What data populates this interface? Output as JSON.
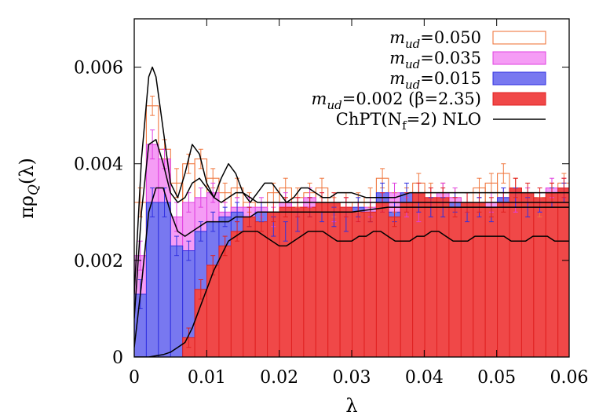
{
  "chart_data": {
    "type": "bar",
    "xlabel": "λ",
    "ylabel": "πρQ(λ)",
    "xlim": [
      0,
      0.06
    ],
    "ylim": [
      0,
      0.007
    ],
    "x_ticks": [
      "0",
      "0.01",
      "0.02",
      "0.03",
      "0.04",
      "0.05",
      "0.06"
    ],
    "x_tick_values": [
      0,
      0.01,
      0.02,
      0.03,
      0.04,
      0.05,
      0.06
    ],
    "y_ticks": [
      "0",
      "0.002",
      "0.004",
      "0.006"
    ],
    "y_tick_values": [
      0,
      0.002,
      0.004,
      0.006
    ],
    "legend_position": "top-right",
    "grid": false,
    "colors": {
      "m050": "#f07840",
      "m035_fill": "#f59cf5",
      "m035_stroke": "#e040e0",
      "m015_fill": "#7878f0",
      "m015_stroke": "#3030e0",
      "m002_fill": "#f04848",
      "m002_stroke": "#e02020",
      "chpt": "#000000"
    },
    "legend": [
      {
        "key": "m050",
        "prefix": "m",
        "sub": "ud",
        "suffix": "=0.050"
      },
      {
        "key": "m035",
        "prefix": "m",
        "sub": "ud",
        "suffix": "=0.035"
      },
      {
        "key": "m015",
        "prefix": "m",
        "sub": "ud",
        "suffix": "=0.015"
      },
      {
        "key": "m002",
        "prefix": "m",
        "sub": "ud",
        "suffix": "=0.002 (β=2.35)"
      },
      {
        "key": "chpt",
        "prefix": "ChPT(N",
        "sub": "f",
        "suffix": "=2) NLO"
      }
    ],
    "series": [
      {
        "name": "m_ud=0.050",
        "key": "m050",
        "bin_width": 0.00167,
        "values": [
          0.0032,
          0.0052,
          0.0043,
          0.0036,
          0.004,
          0.0041,
          0.0037,
          0.0034,
          0.0035,
          0.0032,
          0.003,
          0.0034,
          0.0035,
          0.0033,
          0.0034,
          0.0035,
          0.0031,
          0.0032,
          0.0032,
          0.0033,
          0.0037,
          0.0032,
          0.0033,
          0.0036,
          0.0034,
          0.0034,
          0.0033,
          0.0032,
          0.0035,
          0.0036,
          0.0038,
          0.0035,
          0.0033,
          0.0031,
          0.0034,
          0.0036
        ],
        "errors": [
          0.0003,
          0.0002,
          0.0002,
          0.0003,
          0.0002,
          0.0002,
          0.0002,
          0.0002,
          0.0002,
          0.0002,
          0.0002,
          0.0002,
          0.0002,
          0.0002,
          0.0002,
          0.0002,
          0.0002,
          0.0002,
          0.0002,
          0.0002,
          0.0002,
          0.0002,
          0.0002,
          0.0002,
          0.0002,
          0.0002,
          0.0002,
          0.0002,
          0.0002,
          0.0002,
          0.0002,
          0.0002,
          0.0002,
          0.0002,
          0.0002,
          0.0002
        ]
      },
      {
        "name": "m_ud=0.035",
        "key": "m035",
        "bin_width": 0.00167,
        "values": [
          0.0021,
          0.0044,
          0.0041,
          0.0029,
          0.0032,
          0.0033,
          0.0034,
          0.003,
          0.0031,
          0.0031,
          0.0031,
          0.0029,
          0.0032,
          0.0031,
          0.0033,
          0.0032,
          0.003,
          0.0031,
          0.003,
          0.0031,
          0.0032,
          0.0034,
          0.0031,
          0.003,
          0.0033,
          0.0034,
          0.0033,
          0.0032,
          0.0031,
          0.0032,
          0.0033,
          0.0032,
          0.0033,
          0.0032,
          0.0035,
          0.0035
        ],
        "errors": [
          0.0003,
          0.0003,
          0.0002,
          0.0003,
          0.0002,
          0.0002,
          0.0002,
          0.0002,
          0.0002,
          0.0002,
          0.0002,
          0.0002,
          0.0002,
          0.0002,
          0.0002,
          0.0002,
          0.0002,
          0.0002,
          0.0002,
          0.0002,
          0.0002,
          0.0002,
          0.0002,
          0.0002,
          0.0002,
          0.0002,
          0.0002,
          0.0002,
          0.0002,
          0.0002,
          0.0002,
          0.0002,
          0.0002,
          0.0002,
          0.0002,
          0.0002
        ]
      },
      {
        "name": "m_ud=0.015",
        "key": "m015",
        "bin_width": 0.00167,
        "values": [
          0.0013,
          0.0032,
          0.0032,
          0.0023,
          0.0022,
          0.0026,
          0.0028,
          0.0029,
          0.003,
          0.0029,
          0.003,
          0.0027,
          0.0026,
          0.0028,
          0.0031,
          0.003,
          0.0029,
          0.0028,
          0.0031,
          0.003,
          0.0034,
          0.003,
          0.0034,
          0.0032,
          0.0031,
          0.0031,
          0.0032,
          0.003,
          0.0031,
          0.003,
          0.0033,
          0.0033,
          0.0031,
          0.0032,
          0.0033,
          0.0034
        ],
        "errors": [
          0.0003,
          0.0003,
          0.0003,
          0.0002,
          0.0002,
          0.0002,
          0.0002,
          0.0002,
          0.0002,
          0.0002,
          0.0002,
          0.0002,
          0.0002,
          0.0002,
          0.0002,
          0.0002,
          0.0002,
          0.0002,
          0.0002,
          0.0002,
          0.0002,
          0.0002,
          0.0002,
          0.0002,
          0.0002,
          0.0002,
          0.0002,
          0.0002,
          0.0002,
          0.0002,
          0.0002,
          0.0002,
          0.0002,
          0.0002,
          0.0002,
          0.0002
        ]
      },
      {
        "name": "m_ud=0.002 (β=2.35)",
        "key": "m002",
        "bin_width": 0.00167,
        "values": [
          0,
          0,
          0,
          0,
          0.0004,
          0.0014,
          0.0019,
          0.0023,
          0.0026,
          0.0029,
          0.0028,
          0.003,
          0.0031,
          0.0031,
          0.0031,
          0.0032,
          0.0032,
          0.0031,
          0.003,
          0.003,
          0.0032,
          0.0029,
          0.0032,
          0.0034,
          0.0033,
          0.0033,
          0.0031,
          0.0032,
          0.0032,
          0.0031,
          0.0032,
          0.0035,
          0.0034,
          0.0033,
          0.0034,
          0.0035
        ],
        "errors": [
          0,
          0,
          0,
          0,
          0.0002,
          0.0002,
          0.0002,
          0.0002,
          0.0002,
          0.0002,
          0.0002,
          0.0002,
          0.0002,
          0.0002,
          0.0002,
          0.0002,
          0.0002,
          0.0002,
          0.0002,
          0.0002,
          0.0002,
          0.0002,
          0.0002,
          0.0002,
          0.0002,
          0.0002,
          0.0002,
          0.0002,
          0.0002,
          0.0002,
          0.0002,
          0.0002,
          0.0002,
          0.0002,
          0.0002,
          0.0002
        ]
      }
    ],
    "curves": [
      {
        "name": "ChPT(Nf=2) NLO, m_ud=0.050",
        "x": [
          0,
          0.001,
          0.002,
          0.0025,
          0.003,
          0.004,
          0.005,
          0.006,
          0.007,
          0.008,
          0.009,
          0.01,
          0.011,
          0.012,
          0.013,
          0.014,
          0.015,
          0.016,
          0.017,
          0.018,
          0.019,
          0.02,
          0.021,
          0.022,
          0.023,
          0.024,
          0.025,
          0.026,
          0.027,
          0.028,
          0.029,
          0.03,
          0.032,
          0.034,
          0.036,
          0.038,
          0.04,
          0.042,
          0.045,
          0.05,
          0.055,
          0.06
        ],
        "y": [
          0.0013,
          0.0041,
          0.0058,
          0.006,
          0.0058,
          0.0047,
          0.0036,
          0.0033,
          0.0038,
          0.0044,
          0.0042,
          0.0036,
          0.0033,
          0.0037,
          0.004,
          0.0038,
          0.0034,
          0.0032,
          0.0034,
          0.0036,
          0.0036,
          0.0034,
          0.0032,
          0.0033,
          0.0035,
          0.0035,
          0.0034,
          0.0033,
          0.0033,
          0.0034,
          0.0034,
          0.0034,
          0.0033,
          0.0033,
          0.0033,
          0.0034,
          0.0034,
          0.0034,
          0.0034,
          0.0034,
          0.0034,
          0.0034
        ]
      },
      {
        "name": "ChPT(Nf=2) NLO, m_ud=0.035",
        "x": [
          0,
          0.001,
          0.002,
          0.003,
          0.004,
          0.005,
          0.006,
          0.007,
          0.008,
          0.009,
          0.01,
          0.011,
          0.012,
          0.013,
          0.014,
          0.015,
          0.016,
          0.017,
          0.018,
          0.019,
          0.02,
          0.022,
          0.024,
          0.026,
          0.028,
          0.03,
          0.035,
          0.04,
          0.045,
          0.05,
          0.055,
          0.06
        ],
        "y": [
          0.0008,
          0.003,
          0.0044,
          0.0045,
          0.004,
          0.0034,
          0.0032,
          0.0033,
          0.0036,
          0.0037,
          0.0035,
          0.0033,
          0.0032,
          0.0033,
          0.0034,
          0.0034,
          0.0033,
          0.0032,
          0.0032,
          0.0032,
          0.0032,
          0.0032,
          0.0032,
          0.0032,
          0.0032,
          0.0032,
          0.0032,
          0.0032,
          0.0032,
          0.0032,
          0.0032,
          0.0032
        ]
      },
      {
        "name": "ChPT(Nf=2) NLO, m_ud=0.015",
        "x": [
          0,
          0.001,
          0.002,
          0.003,
          0.004,
          0.005,
          0.006,
          0.007,
          0.008,
          0.009,
          0.01,
          0.011,
          0.012,
          0.013,
          0.014,
          0.015,
          0.016,
          0.017,
          0.018,
          0.019,
          0.02,
          0.022,
          0.024,
          0.026,
          0.028,
          0.03,
          0.035,
          0.04,
          0.045,
          0.05,
          0.055,
          0.06
        ],
        "y": [
          0.0002,
          0.0015,
          0.003,
          0.0035,
          0.0035,
          0.003,
          0.0026,
          0.0025,
          0.0026,
          0.0027,
          0.0028,
          0.0028,
          0.0028,
          0.0028,
          0.0029,
          0.0029,
          0.0029,
          0.003,
          0.003,
          0.003,
          0.003,
          0.003,
          0.003,
          0.003,
          0.003,
          0.003,
          0.0031,
          0.0031,
          0.0031,
          0.0031,
          0.0031,
          0.0031
        ]
      },
      {
        "name": "ChPT(Nf=2) NLO, m_ud=0.002",
        "x": [
          0,
          0.002,
          0.004,
          0.005,
          0.006,
          0.007,
          0.008,
          0.009,
          0.01,
          0.011,
          0.012,
          0.013,
          0.014,
          0.015,
          0.016,
          0.017,
          0.018,
          0.019,
          0.02,
          0.021,
          0.022,
          0.023,
          0.024,
          0.025,
          0.026,
          0.027,
          0.028,
          0.029,
          0.03,
          0.031,
          0.032,
          0.033,
          0.034,
          0.035,
          0.036,
          0.037,
          0.038,
          0.039,
          0.04,
          0.041,
          0.042,
          0.043,
          0.044,
          0.045,
          0.046,
          0.047,
          0.048,
          0.049,
          0.05,
          0.051,
          0.052,
          0.053,
          0.054,
          0.055,
          0.056,
          0.057,
          0.058,
          0.059,
          0.06
        ],
        "y": [
          0,
          0,
          5e-05,
          0.0001,
          0.0002,
          0.0003,
          0.0006,
          0.001,
          0.0014,
          0.0018,
          0.0021,
          0.0024,
          0.0025,
          0.0026,
          0.0026,
          0.0026,
          0.0025,
          0.0024,
          0.0023,
          0.0023,
          0.0024,
          0.0025,
          0.0026,
          0.0026,
          0.0026,
          0.0025,
          0.0024,
          0.0024,
          0.0024,
          0.0025,
          0.0025,
          0.0026,
          0.0026,
          0.0025,
          0.0024,
          0.0024,
          0.0024,
          0.0025,
          0.0025,
          0.0026,
          0.0026,
          0.0025,
          0.0024,
          0.0024,
          0.0024,
          0.0025,
          0.0025,
          0.0025,
          0.0025,
          0.0025,
          0.0024,
          0.0024,
          0.0024,
          0.0025,
          0.0025,
          0.0025,
          0.0024,
          0.0024,
          0.0024
        ]
      }
    ]
  }
}
